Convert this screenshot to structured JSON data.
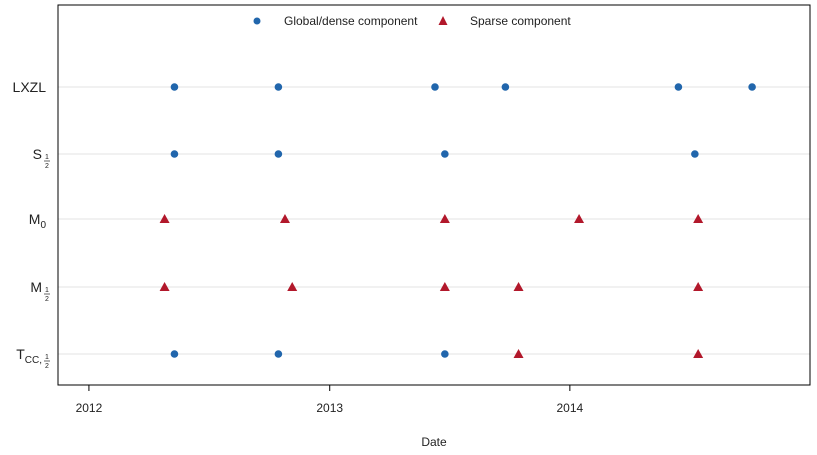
{
  "chart_data": {
    "type": "scatter",
    "xlabel": "Date",
    "x_ticks": [
      "2012",
      "2013",
      "2014"
    ],
    "xlim": [
      "2011-11-15",
      "2015-01-01"
    ],
    "grid": "horizontal",
    "legend_position": "top-center",
    "legend": [
      {
        "label": "Global/dense component",
        "marker": "circle",
        "color": "#2166ac"
      },
      {
        "label": "Sparse component",
        "marker": "triangle",
        "color": "#b2182b"
      }
    ],
    "rows": [
      {
        "base": "LXZL",
        "sub": "",
        "sub_frac": false
      },
      {
        "base": "S",
        "sub": "",
        "sub_frac": true
      },
      {
        "base": "M",
        "sub": "0",
        "sub_frac": false
      },
      {
        "base": "M",
        "sub": "",
        "sub_frac": true
      },
      {
        "base": "T",
        "sub": "CC,",
        "sub_frac": true
      }
    ],
    "series": [
      {
        "name": "Global/dense component",
        "points": [
          {
            "row": 0,
            "date": "2012-05-10"
          },
          {
            "row": 0,
            "date": "2012-10-15"
          },
          {
            "row": 0,
            "date": "2013-06-10"
          },
          {
            "row": 0,
            "date": "2013-09-25"
          },
          {
            "row": 0,
            "date": "2014-06-15"
          },
          {
            "row": 0,
            "date": "2014-10-05"
          },
          {
            "row": 1,
            "date": "2012-05-10"
          },
          {
            "row": 1,
            "date": "2012-10-15"
          },
          {
            "row": 1,
            "date": "2013-06-25"
          },
          {
            "row": 1,
            "date": "2014-07-10"
          },
          {
            "row": 4,
            "date": "2012-05-10"
          },
          {
            "row": 4,
            "date": "2012-10-15"
          },
          {
            "row": 4,
            "date": "2013-06-25"
          }
        ]
      },
      {
        "name": "Sparse component",
        "points": [
          {
            "row": 2,
            "date": "2012-04-25"
          },
          {
            "row": 2,
            "date": "2012-10-25"
          },
          {
            "row": 2,
            "date": "2013-06-25"
          },
          {
            "row": 2,
            "date": "2014-01-15"
          },
          {
            "row": 2,
            "date": "2014-07-15"
          },
          {
            "row": 3,
            "date": "2012-04-25"
          },
          {
            "row": 3,
            "date": "2012-11-05"
          },
          {
            "row": 3,
            "date": "2013-06-25"
          },
          {
            "row": 3,
            "date": "2013-10-15"
          },
          {
            "row": 3,
            "date": "2014-07-15"
          },
          {
            "row": 4,
            "date": "2013-10-15"
          },
          {
            "row": 4,
            "date": "2014-07-15"
          }
        ]
      }
    ]
  }
}
